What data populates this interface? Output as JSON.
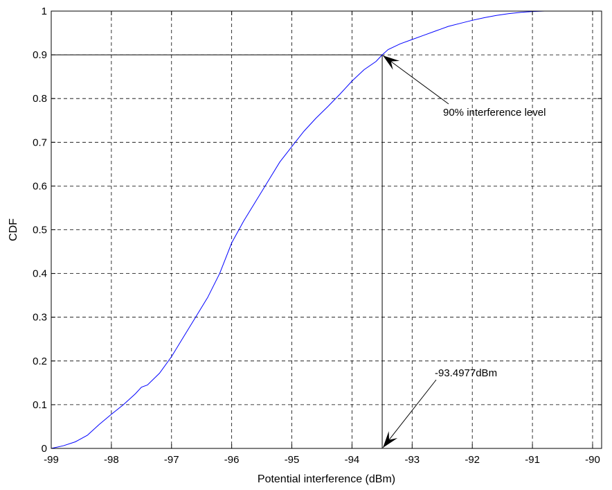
{
  "chart_data": {
    "type": "line",
    "xlabel": "Potential interference (dBm)",
    "ylabel": "CDF",
    "xlim": [
      -99,
      -89.85
    ],
    "ylim": [
      0,
      1
    ],
    "xticks": [
      -99,
      -98,
      -97,
      -96,
      -95,
      -94,
      -93,
      -92,
      -91,
      -90
    ],
    "xtick_labels": [
      "-99",
      "-98",
      "-97",
      "-96",
      "-95",
      "-94",
      "-93",
      "-92",
      "-91",
      "-90"
    ],
    "yticks": [
      0,
      0.1,
      0.2,
      0.3,
      0.4,
      0.5,
      0.6,
      0.7,
      0.8,
      0.9,
      1
    ],
    "ytick_labels": [
      "0",
      "0.1",
      "0.2",
      "0.3",
      "0.4",
      "0.5",
      "0.6",
      "0.7",
      "0.8",
      "0.9",
      "1"
    ],
    "grid": true,
    "series": [
      {
        "color": "#0000ff",
        "x": [
          -99.0,
          -98.8,
          -98.6,
          -98.4,
          -98.2,
          -98.0,
          -97.8,
          -97.6,
          -97.5,
          -97.4,
          -97.2,
          -97.0,
          -96.8,
          -96.6,
          -96.4,
          -96.2,
          -96.0,
          -95.8,
          -95.6,
          -95.4,
          -95.2,
          -95.0,
          -94.8,
          -94.6,
          -94.4,
          -94.2,
          -94.0,
          -93.8,
          -93.6,
          -93.4977,
          -93.4,
          -93.2,
          -93.0,
          -92.8,
          -92.6,
          -92.4,
          -92.2,
          -92.0,
          -91.8,
          -91.6,
          -91.4,
          -91.2,
          -91.0,
          -90.8,
          -90.6,
          -90.4,
          -90.2,
          -90.0,
          -89.85
        ],
        "y": [
          0.0,
          0.006,
          0.015,
          0.03,
          0.055,
          0.078,
          0.1,
          0.125,
          0.14,
          0.145,
          0.172,
          0.21,
          0.255,
          0.3,
          0.345,
          0.4,
          0.47,
          0.52,
          0.565,
          0.61,
          0.655,
          0.69,
          0.725,
          0.755,
          0.782,
          0.81,
          0.84,
          0.866,
          0.885,
          0.9,
          0.912,
          0.925,
          0.935,
          0.945,
          0.955,
          0.965,
          0.972,
          0.979,
          0.985,
          0.99,
          0.994,
          0.997,
          0.999,
          1.0,
          1.0,
          1.0,
          1.0,
          1.0,
          1.0
        ]
      }
    ],
    "reference_lines": {
      "color": "#000000",
      "y_level": 0.9,
      "x_level": -93.4977
    },
    "annotations": [
      {
        "text": "90% interference level",
        "arrow_to": [
          -93.4977,
          0.9
        ]
      },
      {
        "text": "-93.4977dBm",
        "arrow_to": [
          -93.4977,
          0.0
        ]
      }
    ]
  }
}
